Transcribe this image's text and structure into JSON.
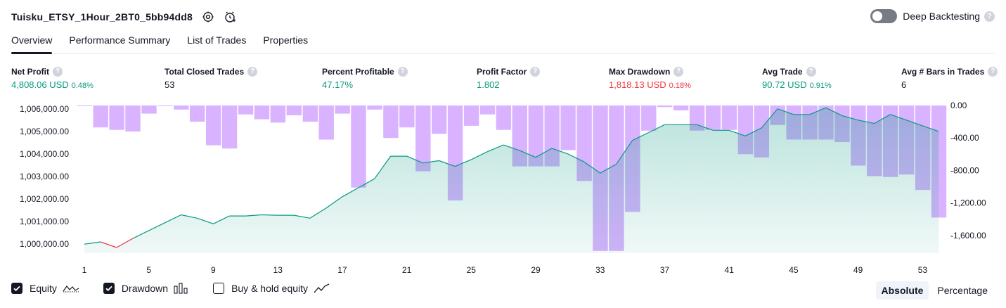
{
  "header": {
    "strategy_title": "Tuisku_ETSY_1Hour_2BT0_5bb94dd8",
    "deep_backtesting_label": "Deep Backtesting",
    "help_glyph": "?"
  },
  "tabs": [
    {
      "label": "Overview",
      "active": true
    },
    {
      "label": "Performance Summary",
      "active": false
    },
    {
      "label": "List of Trades",
      "active": false
    },
    {
      "label": "Properties",
      "active": false
    }
  ],
  "metrics": [
    {
      "label": "Net Profit",
      "value": "4,808.06 USD",
      "pct": "0.48%",
      "tone": "green"
    },
    {
      "label": "Total Closed Trades",
      "value": "53",
      "pct": "",
      "tone": "dark"
    },
    {
      "label": "Percent Profitable",
      "value": "47.17%",
      "pct": "",
      "tone": "green"
    },
    {
      "label": "Profit Factor",
      "value": "1.802",
      "pct": "",
      "tone": "green"
    },
    {
      "label": "Max Drawdown",
      "value": "1,818.13 USD",
      "pct": "0.18%",
      "tone": "red"
    },
    {
      "label": "Avg Trade",
      "value": "90.72 USD",
      "pct": "0.91%",
      "tone": "green"
    },
    {
      "label": "Avg # Bars in Trades",
      "value": "6",
      "pct": "",
      "tone": "dark"
    }
  ],
  "chart_data": {
    "type": "area",
    "x_ticks": [
      "1",
      "5",
      "9",
      "13",
      "17",
      "21",
      "25",
      "29",
      "33",
      "37",
      "41",
      "45",
      "49",
      "53"
    ],
    "y_left_ticks": [
      "1,006,000.00",
      "1,005,000.00",
      "1,004,000.00",
      "1,003,000.00",
      "1,002,000.00",
      "1,001,000.00",
      "1,000,000.00"
    ],
    "y_left_range": [
      999600,
      1006150
    ],
    "y_right_ticks": [
      "0.00",
      "-400.00",
      "-800.00",
      "-1,200.00",
      "-1,600.00"
    ],
    "y_right_range": [
      -1818,
      0
    ],
    "series": [
      {
        "name": "Equity",
        "values": [
          1000000,
          1000100,
          999850,
          1000250,
          1000600,
          1000950,
          1001300,
          1001150,
          1000900,
          1001250,
          1001250,
          1001300,
          1001280,
          1001280,
          1001150,
          1001600,
          1002100,
          1002500,
          1002900,
          1003900,
          1003900,
          1003600,
          1003700,
          1003450,
          1003750,
          1004100,
          1004400,
          1004150,
          1003850,
          1004250,
          1004000,
          1003650,
          1003150,
          1003550,
          1004600,
          1004950,
          1005300,
          1005300,
          1005300,
          1005050,
          1005050,
          1004800,
          1005150,
          1006000,
          1005750,
          1005750,
          1006050,
          1005700,
          1005500,
          1005350,
          1005750,
          1005500,
          1005250,
          1005000
        ],
        "color": "#089981",
        "loss_color": "#f23645"
      },
      {
        "name": "Drawdown",
        "values": [
          0,
          -270,
          -300,
          -320,
          -100,
          0,
          -50,
          -200,
          -490,
          -530,
          -110,
          -170,
          -210,
          -120,
          -200,
          -420,
          -100,
          -1010,
          -50,
          -400,
          -270,
          -810,
          -350,
          -1170,
          -250,
          -110,
          -300,
          -750,
          -750,
          -750,
          -550,
          -930,
          -1790,
          -1790,
          -1310,
          -310,
          -20,
          -60,
          -310,
          -300,
          -300,
          -600,
          -640,
          -240,
          -420,
          -420,
          -420,
          -450,
          -740,
          -870,
          -880,
          -850,
          -1040,
          -1380
        ],
        "color": "#b39ddb"
      }
    ]
  },
  "legend": {
    "equity_label": "Equity",
    "drawdown_label": "Drawdown",
    "buyhold_label": "Buy & hold equity",
    "equity_checked": true,
    "drawdown_checked": true,
    "buyhold_checked": false
  },
  "modes": {
    "absolute_label": "Absolute",
    "percentage_label": "Percentage",
    "active": "absolute"
  },
  "colors": {
    "accent": "#131722",
    "profit": "#089981",
    "loss": "#f23645",
    "drawdown": "#d9b3ff"
  }
}
